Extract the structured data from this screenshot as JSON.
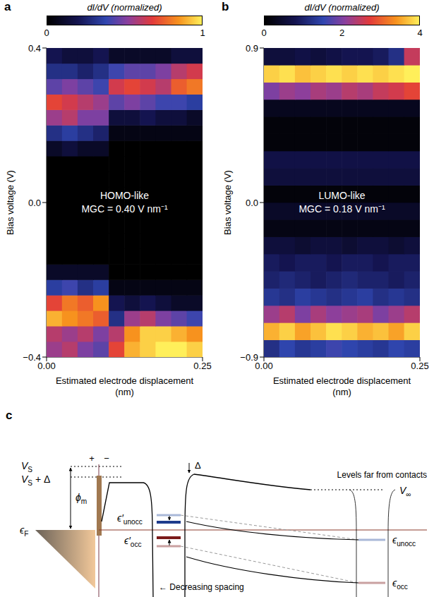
{
  "chart_data": [
    {
      "type": "heatmap",
      "panel": "a",
      "annotations": [
        "HOMO-like",
        "MGC = 0.40 V nm⁻¹"
      ],
      "x_label": "Estimated electrode displacement (nm)",
      "y_label": "Bias voltage (V)",
      "x": [
        0.0125,
        0.0375,
        0.0625,
        0.0875,
        0.1125,
        0.1375,
        0.1625,
        0.1875,
        0.2125,
        0.2375
      ],
      "y": [
        -0.38,
        -0.34,
        -0.3,
        -0.26,
        -0.22,
        -0.18,
        -0.14,
        -0.1,
        -0.06,
        -0.02,
        0.02,
        0.06,
        0.1,
        0.14,
        0.18,
        0.22,
        0.26,
        0.3,
        0.34,
        0.38
      ],
      "values": [
        [
          0.55,
          0.6,
          0.5,
          0.45,
          0.7,
          0.9,
          0.95,
          1.0,
          1.0,
          0.95
        ],
        [
          0.6,
          0.55,
          0.6,
          0.5,
          0.6,
          0.85,
          0.95,
          0.95,
          0.9,
          0.85
        ],
        [
          0.9,
          0.85,
          0.8,
          0.75,
          0.3,
          0.55,
          0.6,
          0.5,
          0.45,
          0.4
        ],
        [
          0.7,
          0.8,
          0.75,
          0.85,
          0.2,
          0.15,
          0.2,
          0.15,
          0.1,
          0.1
        ],
        [
          0.35,
          0.4,
          0.3,
          0.35,
          0.05,
          0.05,
          0.05,
          0.05,
          0.05,
          0.05
        ],
        [
          0.1,
          0.1,
          0.1,
          0.1,
          0,
          0,
          0,
          0,
          0,
          0
        ],
        [
          0,
          0,
          0,
          0,
          0,
          0,
          0,
          0,
          0,
          0
        ],
        [
          0,
          0,
          0,
          0,
          0,
          0,
          0,
          0,
          0,
          0
        ],
        [
          0,
          0,
          0,
          0,
          0,
          0,
          0,
          0,
          0,
          0
        ],
        [
          0,
          0,
          0,
          0,
          0,
          0,
          0,
          0,
          0,
          0
        ],
        [
          0,
          0,
          0,
          0,
          0,
          0,
          0,
          0,
          0,
          0
        ],
        [
          0,
          0,
          0,
          0,
          0,
          0,
          0,
          0,
          0,
          0
        ],
        [
          0,
          0,
          0,
          0,
          0,
          0,
          0,
          0,
          0,
          0
        ],
        [
          0.1,
          0.15,
          0.1,
          0.1,
          0,
          0,
          0,
          0,
          0,
          0
        ],
        [
          0.3,
          0.35,
          0.3,
          0.25,
          0.05,
          0.05,
          0.05,
          0.05,
          0.05,
          0.05
        ],
        [
          0.55,
          0.6,
          0.5,
          0.5,
          0.15,
          0.15,
          0.2,
          0.15,
          0.15,
          0.1
        ],
        [
          0.7,
          0.65,
          0.6,
          0.55,
          0.45,
          0.5,
          0.45,
          0.4,
          0.4,
          0.35
        ],
        [
          0.45,
          0.5,
          0.45,
          0.4,
          0.65,
          0.7,
          0.65,
          0.6,
          0.75,
          0.8
        ],
        [
          0.3,
          0.3,
          0.25,
          0.3,
          0.4,
          0.45,
          0.45,
          0.5,
          0.6,
          0.65
        ],
        [
          0.2,
          0.15,
          0.15,
          0.2,
          0.1,
          0.1,
          0.1,
          0.1,
          0.15,
          0.15
        ]
      ],
      "xlim": [
        0,
        0.25
      ],
      "ylim": [
        -0.4,
        0.4
      ],
      "xticks": [
        {
          "value": 0,
          "label": "0.00"
        },
        {
          "value": 0.25,
          "label": "0.25"
        }
      ],
      "yticks": [
        {
          "value": -0.4,
          "label": "−0.4"
        },
        {
          "value": 0,
          "label": "0.0"
        },
        0.4
      ],
      "colorbar": {
        "label": "dI/dV (normalized)",
        "range": [
          0,
          1
        ],
        "ticks": [
          0,
          1
        ]
      },
      "grid": false
    },
    {
      "type": "heatmap",
      "panel": "b",
      "annotations": [
        "LUMO-like",
        "MGC = 0.18 V nm⁻¹"
      ],
      "x_label": "Estimated electrode displacement (nm)",
      "y_label": "Bias voltage (V)",
      "x": [
        0.0125,
        0.0375,
        0.0625,
        0.0875,
        0.1125,
        0.1375,
        0.1625,
        0.1875,
        0.2125,
        0.2375
      ],
      "y": [
        -0.85,
        -0.75,
        -0.65,
        -0.55,
        -0.45,
        -0.35,
        -0.25,
        -0.15,
        -0.05,
        0.05,
        0.15,
        0.25,
        0.35,
        0.45,
        0.55,
        0.65,
        0.75,
        0.85
      ],
      "values": [
        [
          1.2,
          1.5,
          1.3,
          1.4,
          1.6,
          1.5,
          1.4,
          1.3,
          1.5,
          1.4
        ],
        [
          3.6,
          3.8,
          3.5,
          3.7,
          3.9,
          3.8,
          3.6,
          3.7,
          3.5,
          3.8
        ],
        [
          2.2,
          2.4,
          2.0,
          2.3,
          2.1,
          2.2,
          2.3,
          2.0,
          2.2,
          2.4
        ],
        [
          1.3,
          1.2,
          1.4,
          1.3,
          1.2,
          1.3,
          1.4,
          1.2,
          1.3,
          1.2
        ],
        [
          1.0,
          1.1,
          1.0,
          0.9,
          1.0,
          1.1,
          1.0,
          1.0,
          0.9,
          1.0
        ],
        [
          0.9,
          0.8,
          0.9,
          0.9,
          0.8,
          0.9,
          0.9,
          0.8,
          0.9,
          0.9
        ],
        [
          0.6,
          0.6,
          0.5,
          0.6,
          0.6,
          0.5,
          0.6,
          0.6,
          0.5,
          0.6
        ],
        [
          0.2,
          0.2,
          0.2,
          0.2,
          0.2,
          0.2,
          0.2,
          0.2,
          0.2,
          0.2
        ],
        [
          0.4,
          0.4,
          0.4,
          0.4,
          0.4,
          0.4,
          0.4,
          0.4,
          0.4,
          0.4
        ],
        [
          0.1,
          0.1,
          0.1,
          0.1,
          0.1,
          0.1,
          0.1,
          0.1,
          0.1,
          0.1
        ],
        [
          0.6,
          0.6,
          0.6,
          0.6,
          0.6,
          0.6,
          0.6,
          0.6,
          0.6,
          0.6
        ],
        [
          0.7,
          0.7,
          0.7,
          0.7,
          0.7,
          0.7,
          0.7,
          0.7,
          0.7,
          0.7
        ],
        [
          0.1,
          0.1,
          0.1,
          0.1,
          0.1,
          0.1,
          0.1,
          0.1,
          0.1,
          0.1
        ],
        [
          0.1,
          0.1,
          0.1,
          0.1,
          0.1,
          0.1,
          0.1,
          0.1,
          0.1,
          0.1
        ],
        [
          0.3,
          0.3,
          0.3,
          0.3,
          0.3,
          0.3,
          0.3,
          0.3,
          0.3,
          0.3
        ],
        [
          2.0,
          2.2,
          2.1,
          2.3,
          2.2,
          2.4,
          2.3,
          2.5,
          2.6,
          2.8
        ],
        [
          3.8,
          3.9,
          3.7,
          3.8,
          3.9,
          3.8,
          3.9,
          3.8,
          3.9,
          4.0
        ],
        [
          0.6,
          0.6,
          0.7,
          0.6,
          0.7,
          0.8,
          0.8,
          0.9,
          1.2,
          2.5
        ]
      ],
      "xlim": [
        0,
        0.25
      ],
      "ylim": [
        -0.9,
        0.9
      ],
      "xticks": [
        {
          "value": 0,
          "label": "0.00"
        },
        {
          "value": 0.25,
          "label": "0.25"
        }
      ],
      "yticks": [
        {
          "value": -0.9,
          "label": "−0.9"
        },
        {
          "value": 0,
          "label": "0.0"
        },
        0.9
      ],
      "colorbar": {
        "label": "dI/dV (normalized)",
        "range": [
          0,
          4
        ],
        "ticks": [
          0,
          2,
          4
        ]
      },
      "grid": false
    }
  ],
  "diagram": {
    "panel": "c",
    "labels": {
      "source_voltage": {
        "text": "V",
        "sub": "S"
      },
      "shifted_voltage": {
        "text": "V",
        "sub": "S",
        "after": " + Δ"
      },
      "offset": {
        "text": "Δ"
      },
      "work_function": {
        "text": "ϕ",
        "sub": "m"
      },
      "fermi": {
        "text": "ϵ",
        "sub": "F"
      },
      "plus": {
        "text": "+"
      },
      "minus": {
        "text": "−"
      },
      "unocc_near": {
        "text": "ϵ′",
        "sub": "unocc"
      },
      "occ_near": {
        "text": "ϵ′",
        "sub": "occ"
      },
      "far_caption": {
        "text": "Levels far from contacts"
      },
      "v_inf": {
        "text": "V",
        "sub": "∞"
      },
      "unocc_far": {
        "text": "ϵ",
        "sub": "unocc"
      },
      "occ_far": {
        "text": "ϵ",
        "sub": "occ"
      },
      "spacing": {
        "text": "← Decreasing spacing"
      }
    }
  }
}
